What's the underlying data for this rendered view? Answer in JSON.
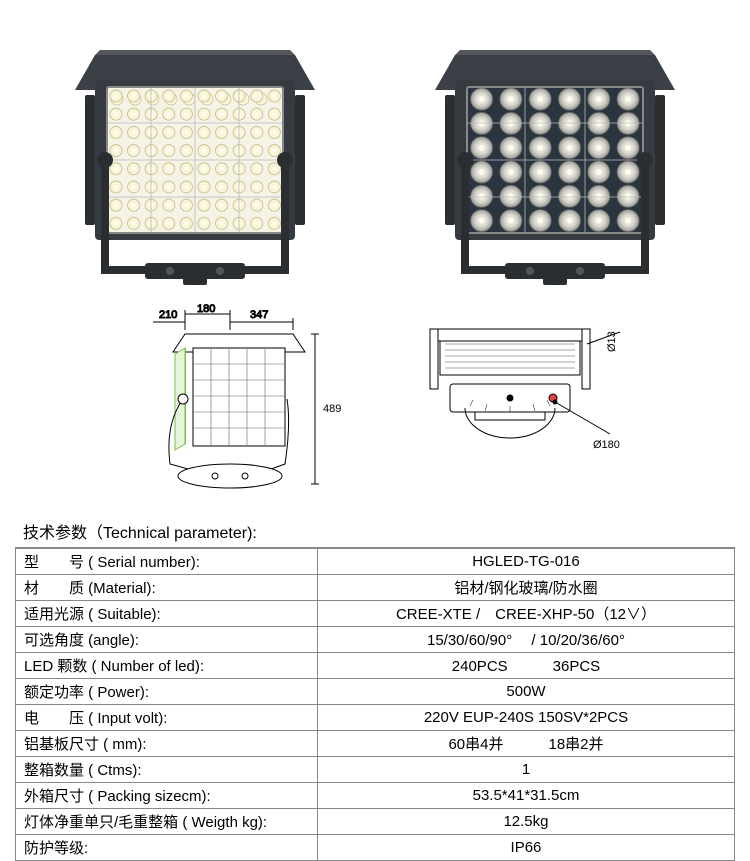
{
  "dimensions": {
    "d1": "210",
    "d2": "180",
    "d3": "347",
    "d4": "489",
    "d5": "Ø13",
    "d6": "Ø180"
  },
  "section_title": "技术参数（Technical parameter):",
  "spec": {
    "rows": [
      {
        "label_cn": "型　　号",
        "label_en": "( Serial number):",
        "value": "HGLED-TG-016"
      },
      {
        "label_cn": "材　　质",
        "label_en": "(Material):",
        "value": "铝材/钢化玻璃/防水圈"
      },
      {
        "label_cn": "适用光源",
        "label_en": "( Suitable):",
        "value": "CREE-XTE /　CREE-XHP-50（12∨）"
      },
      {
        "label_cn": "可选角度",
        "label_en": "(angle):",
        "value": "15/30/60/90°　 /  10/20/36/60°"
      },
      {
        "label_cn": "LED 颗数",
        "label_en": "( Number of led):",
        "value": "240PCS　　　36PCS"
      },
      {
        "label_cn": "额定功率",
        "label_en": "( Power):",
        "value": "500W"
      },
      {
        "label_cn": "电　　压",
        "label_en": "( Input volt):",
        "value": "220V EUP-240S 150SV*2PCS"
      },
      {
        "label_cn": "铝基板尺寸",
        "label_en": "( mm):",
        "value": "60串4并　　　18串2并"
      },
      {
        "label_cn": "整箱数量",
        "label_en": "( Ctms):",
        "value": "1"
      },
      {
        "label_cn": "外箱尺寸",
        "label_en": "( Packing sizecm):",
        "value": "53.5*41*31.5cm"
      },
      {
        "label_cn": "灯体净重单只/毛重整箱",
        "label_en": "( Weigth kg):",
        "value": "12.5kg"
      },
      {
        "label_cn": "防护等级:",
        "label_en": "",
        "value": "IP66"
      }
    ]
  },
  "style": {
    "lamp_housing": "#353b40",
    "lamp_panel_light": "#f5f2e6",
    "lamp_panel_dark": "#2a3540",
    "led_light": "#fff9d8",
    "led_ring": "#aaa",
    "bracket": "#2b2e31",
    "diagram_stroke": "#000000",
    "diagram_fill": "#ffffff",
    "diagram_highlight": "#7bbf4a",
    "border_color": "#888888"
  }
}
